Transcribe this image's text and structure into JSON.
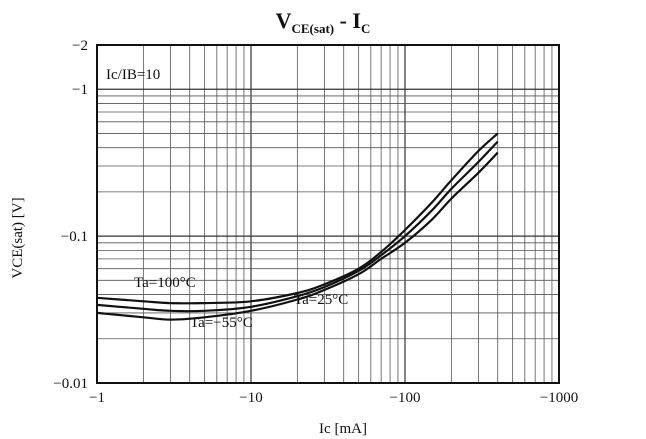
{
  "chart_data": {
    "type": "line",
    "title_main": "V",
    "title_sub": "CE(sat)",
    "title_rest": "  -  I",
    "title_rest_sub": "C",
    "xlabel": "Ic  [mA]",
    "ylabel": "VCE(sat) [V]",
    "condition": "Ic/IB=10",
    "x_scale": "log",
    "y_scale": "log",
    "xlim": [
      -1,
      -1000
    ],
    "ylim": [
      -0.01,
      -2
    ],
    "x_ticks": [
      {
        "value": -1,
        "label": "−1"
      },
      {
        "value": -10,
        "label": "−10"
      },
      {
        "value": -100,
        "label": "−100"
      },
      {
        "value": -1000,
        "label": "−1000"
      }
    ],
    "y_ticks": [
      {
        "value": -2,
        "label": "−2"
      },
      {
        "value": -1,
        "label": "−1"
      },
      {
        "value": -0.1,
        "label": "−0.1"
      },
      {
        "value": -0.01,
        "label": "−0.01"
      }
    ],
    "grid": true,
    "series": [
      {
        "name": "Ta=100°C",
        "x": [
          -1,
          -2,
          -3,
          -5,
          -10,
          -20,
          -30,
          -50,
          -70,
          -100,
          -150,
          -200,
          -300,
          -400
        ],
        "y": [
          -0.038,
          -0.036,
          -0.035,
          -0.035,
          -0.036,
          -0.041,
          -0.047,
          -0.06,
          -0.078,
          -0.11,
          -0.17,
          -0.24,
          -0.38,
          -0.5
        ]
      },
      {
        "name": "Ta=25°C",
        "x": [
          -1,
          -2,
          -3,
          -5,
          -10,
          -20,
          -30,
          -50,
          -70,
          -100,
          -150,
          -200,
          -300,
          -400
        ],
        "y": [
          -0.034,
          -0.032,
          -0.031,
          -0.031,
          -0.033,
          -0.039,
          -0.045,
          -0.058,
          -0.074,
          -0.1,
          -0.15,
          -0.21,
          -0.32,
          -0.44
        ]
      },
      {
        "name": "Ta=−55°C",
        "x": [
          -1,
          -2,
          -3,
          -5,
          -10,
          -20,
          -30,
          -50,
          -70,
          -100,
          -150,
          -200,
          -300,
          -400
        ],
        "y": [
          -0.03,
          -0.028,
          -0.027,
          -0.028,
          -0.031,
          -0.037,
          -0.043,
          -0.055,
          -0.07,
          -0.09,
          -0.13,
          -0.18,
          -0.27,
          -0.37
        ]
      }
    ],
    "annotations": [
      {
        "text": "Ta=100°C",
        "series": 0
      },
      {
        "text": "Ta=25°C",
        "series": 1
      },
      {
        "text": "Ta=−55°C",
        "series": 2
      }
    ]
  }
}
